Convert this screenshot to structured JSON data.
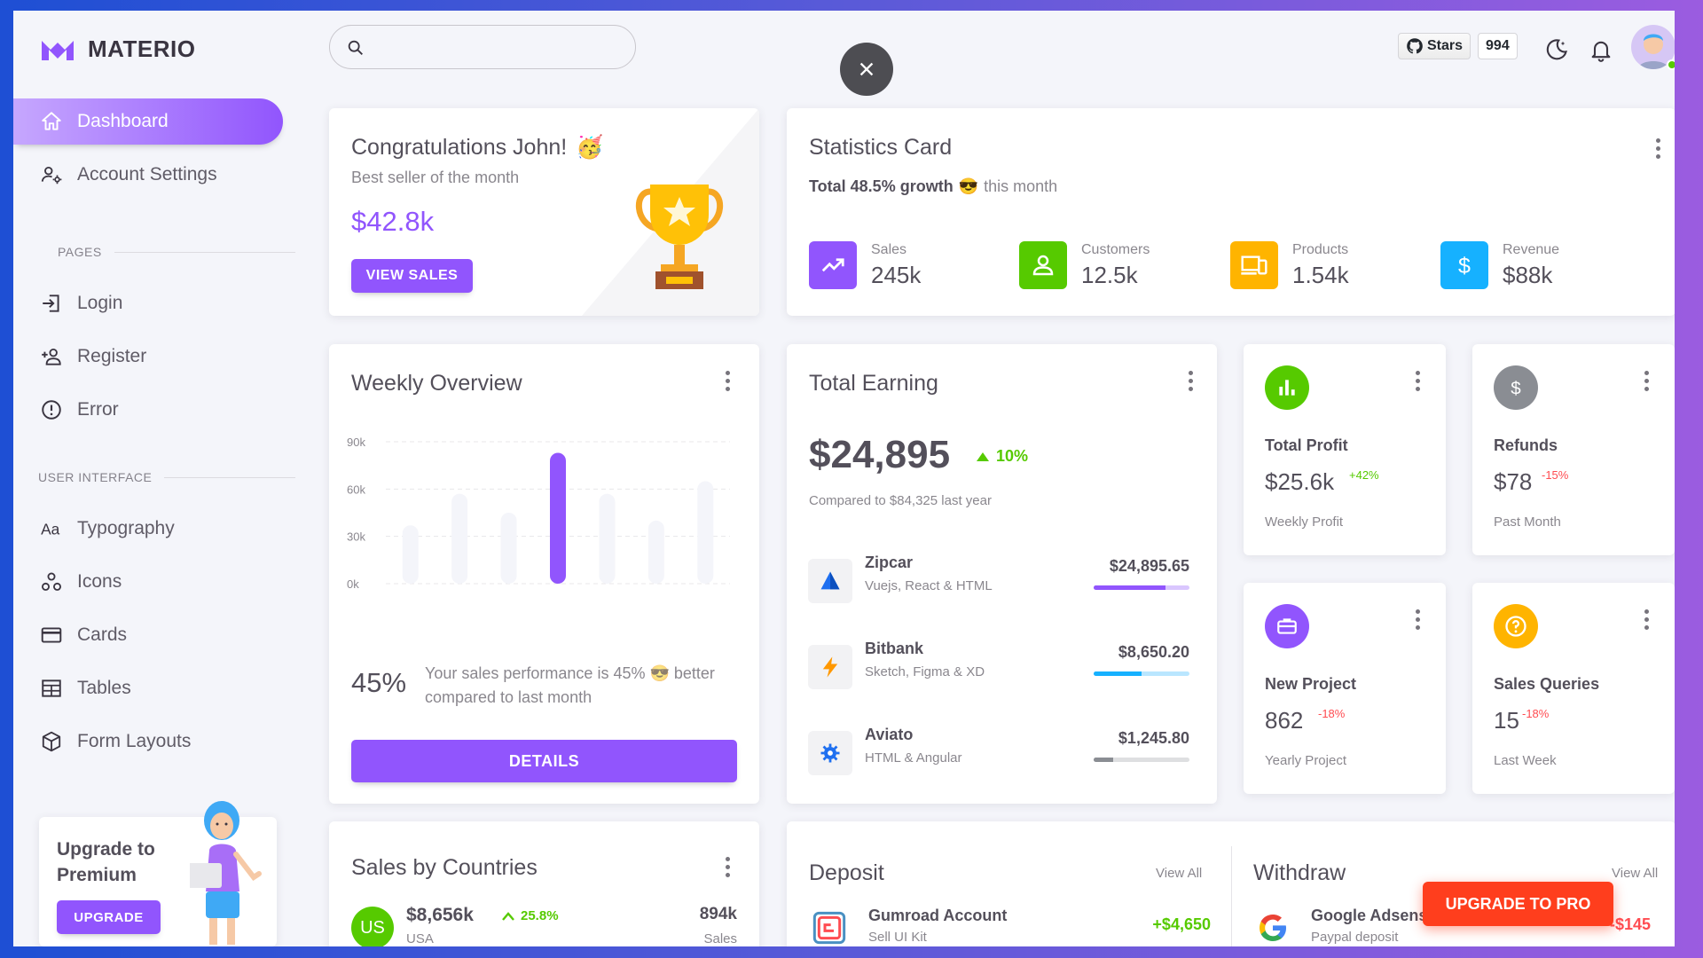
{
  "app": {
    "brand": "MATERIO"
  },
  "sidebar": {
    "items": [
      {
        "label": "Dashboard",
        "icon": "home-icon"
      },
      {
        "label": "Account Settings",
        "icon": "account-cog-icon"
      }
    ],
    "pages_title": "PAGES",
    "pages": [
      {
        "label": "Login",
        "icon": "login-icon"
      },
      {
        "label": "Register",
        "icon": "account-plus-icon"
      },
      {
        "label": "Error",
        "icon": "alert-circle-icon"
      }
    ],
    "ui_title": "USER INTERFACE",
    "ui": [
      {
        "label": "Typography",
        "icon": "format-letter-case-icon"
      },
      {
        "label": "Icons",
        "icon": "google-circles-icon"
      },
      {
        "label": "Cards",
        "icon": "credit-card-icon"
      },
      {
        "label": "Tables",
        "icon": "table-icon"
      },
      {
        "label": "Form Layouts",
        "icon": "cube-outline-icon"
      }
    ],
    "upgrade": {
      "title_line1": "Upgrade to",
      "title_line2": "Premium",
      "button": "UPGRADE"
    }
  },
  "header": {
    "stars_label": "Stars",
    "stars_count": "994"
  },
  "congrats": {
    "title": "Congratulations John!",
    "emoji": "🥳",
    "subtitle": "Best seller of the month",
    "value": "$42.8k",
    "button": "VIEW SALES"
  },
  "statistics": {
    "title": "Statistics Card",
    "growth_bold": "Total 48.5% growth",
    "growth_emoji": "😎",
    "growth_rest": "this month",
    "items": [
      {
        "label": "Sales",
        "value": "245k",
        "color": "#9155fd",
        "icon": "trending-up-icon"
      },
      {
        "label": "Customers",
        "value": "12.5k",
        "color": "#56ca00",
        "icon": "account-outline-icon"
      },
      {
        "label": "Products",
        "value": "1.54k",
        "color": "#ffb400",
        "icon": "cellphone-link-icon"
      },
      {
        "label": "Revenue",
        "value": "$88k",
        "color": "#16b1ff",
        "icon": "currency-usd-icon"
      }
    ]
  },
  "weekly": {
    "title": "Weekly Overview",
    "percent": "45%",
    "desc_line1": "Your sales performance is 45% 😎 better",
    "desc_line2": "compared to last month",
    "button": "DETAILS"
  },
  "chart_data": {
    "type": "bar",
    "categories": [
      "",
      "",
      "",
      "",
      "",
      "",
      ""
    ],
    "values": [
      37,
      57,
      45,
      83,
      57,
      40,
      65
    ],
    "highlight_index": 3,
    "yticks": [
      "90k",
      "60k",
      "30k",
      "0k"
    ],
    "ylim": [
      0,
      90
    ],
    "grid": true
  },
  "earning": {
    "title": "Total Earning",
    "amount": "$24,895",
    "change": "10%",
    "compare": "Compared to $84,325 last year",
    "rows": [
      {
        "name": "Zipcar",
        "sub": "Vuejs, React & HTML",
        "amount": "$24,895.65",
        "progress": 75,
        "color": "#9155fd",
        "track": "#d9c6fe"
      },
      {
        "name": "Bitbank",
        "sub": "Sketch, Figma & XD",
        "amount": "$8,650.20",
        "progress": 50,
        "color": "#16b1ff",
        "track": "#b9e6ff"
      },
      {
        "name": "Aviato",
        "sub": "HTML & Angular",
        "amount": "$1,245.80",
        "progress": 20,
        "color": "#8a8d93",
        "track": "#dedfe1"
      }
    ]
  },
  "profit": {
    "title": "Total Profit",
    "value": "$25.6k",
    "change": "+42%",
    "sub": "Weekly Profit"
  },
  "refunds": {
    "title": "Refunds",
    "value": "$78",
    "change": "-15%",
    "sub": "Past Month"
  },
  "project": {
    "title": "New Project",
    "value": "862",
    "change": "-18%",
    "sub": "Yearly Project"
  },
  "queries": {
    "title": "Sales Queries",
    "value": "15",
    "change": "-18%",
    "sub": "Last Week"
  },
  "countries": {
    "title": "Sales by Countries",
    "code": "US",
    "value": "$8,656k",
    "change": "25.8%",
    "country": "USA",
    "sales": "894k",
    "sales_label": "Sales"
  },
  "deposit": {
    "title": "Deposit",
    "view_all": "View All",
    "name": "Gumroad Account",
    "sub": "Sell UI Kit",
    "amount": "+$4,650"
  },
  "withdraw": {
    "title": "Withdraw",
    "view_all": "View All",
    "name": "Google Adsense",
    "sub": "Paypal deposit",
    "amount": "-$145"
  },
  "upgrade_pro": "UPGRADE TO PRO"
}
